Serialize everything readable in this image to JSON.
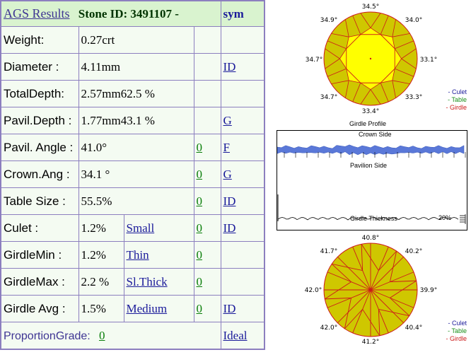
{
  "header": {
    "title": "AGS  Results",
    "stone_id": "Stone ID:  3491107 -",
    "sym": "sym"
  },
  "rows": [
    {
      "label": "Weight:",
      "value": "0.27crt",
      "pct": "",
      "desc": "",
      "grade": "",
      "sym": ""
    },
    {
      "label": "Diameter :",
      "value": "4.11mm",
      "pct": "",
      "desc": "",
      "grade": "",
      "sym": "ID"
    },
    {
      "label": "TotalDepth:",
      "value": "2.57mm",
      "pct": "62.5 %",
      "desc": "",
      "grade": "",
      "sym": ""
    },
    {
      "label": "Pavil.Depth :",
      "value": "1.77mm",
      "pct": "43.1 %",
      "desc": "",
      "grade": "",
      "sym": "G"
    },
    {
      "label": "Pavil. Angle :",
      "value": "41.0°",
      "pct": "",
      "desc": "",
      "grade": "0",
      "sym": "F"
    },
    {
      "label": "Crown.Ang :",
      "value": "34.1 °",
      "pct": "",
      "desc": "",
      "grade": "0",
      "sym": "G"
    },
    {
      "label": "Table Size :",
      "value": "55.5%",
      "pct": "",
      "desc": "",
      "grade": "0",
      "sym": "ID"
    },
    {
      "label": "Culet :",
      "value": "1.2%",
      "pct": "",
      "desc": "Small",
      "grade": "0",
      "sym": "ID"
    },
    {
      "label": "GirdleMin :",
      "value": "1.2%",
      "pct": "",
      "desc": "Thin",
      "grade": "0",
      "sym": ""
    },
    {
      "label": "GirdleMax :",
      "value": "2.2 %",
      "pct": "",
      "desc": "Sl.Thick",
      "grade": "0",
      "sym": ""
    },
    {
      "label": "Girdle Avg :",
      "value": "1.5%",
      "pct": "",
      "desc": "Medium",
      "grade": "0",
      "sym": "ID"
    }
  ],
  "footer": {
    "label": "ProportionGrade:",
    "grade": "0",
    "overall": "Ideal"
  },
  "crown_diagram": {
    "angles": {
      "top": "34.5°",
      "top_left": "34.9°",
      "top_right": "34.0°",
      "left": "34.7°",
      "right": "33.1°",
      "bottom_left": "34.7°",
      "bottom_right": "33.3°",
      "bottom": "33.4°"
    }
  },
  "pavilion_diagram": {
    "angles": {
      "top": "40.8°",
      "top_left": "41.7°",
      "top_right": "40.2°",
      "left": "42.0°",
      "right": "39.9°",
      "bottom_left": "42.0°",
      "bottom_right": "40.4°",
      "bottom": "41.2°"
    }
  },
  "legend": {
    "culet": "- Culet",
    "table": "- Table",
    "girdle": "- Girdle"
  },
  "girdle_profile": {
    "title": "Girdle Profile",
    "crown_side": "Crown Side",
    "pavilion_side": "Pavilion Side",
    "thickness_label": "Girdle Thickness",
    "percent": "20%"
  },
  "colors": {
    "facet_fill": "#cfc700",
    "table_fill": "#ffff00",
    "facet_line": "#cc1a1a",
    "profile_band": "#5a78d8",
    "label_text": "#3e3593",
    "grade_link": "#0a7e0a",
    "sym_link": "#1a1a9a"
  }
}
